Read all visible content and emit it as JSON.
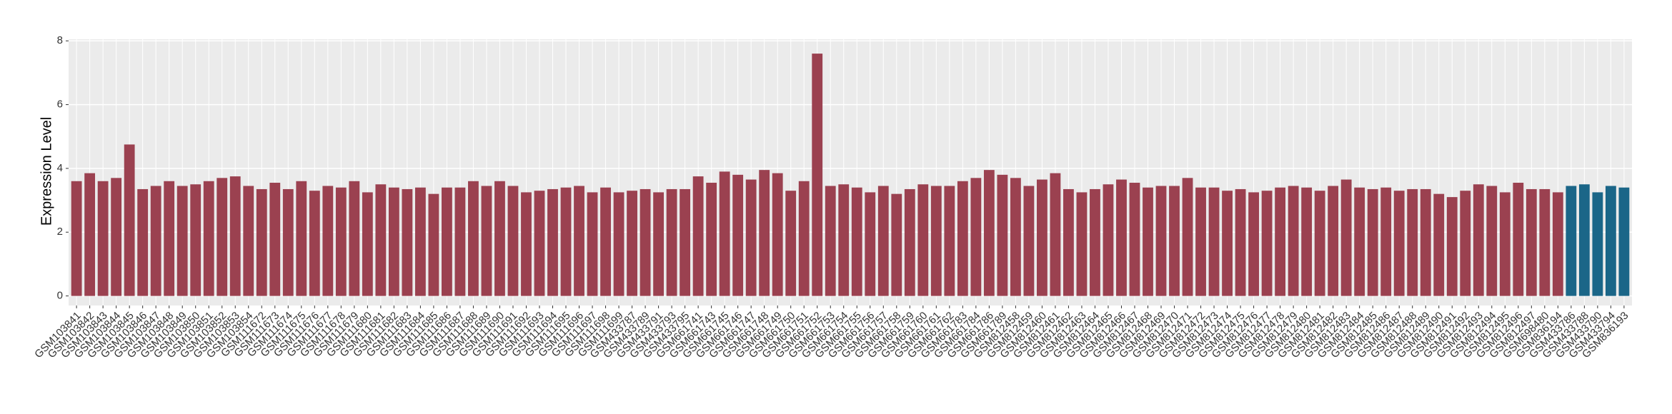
{
  "chart_data": {
    "type": "bar",
    "y_label": "Expression Level",
    "categories": [
      "GSM103841",
      "GSM103842",
      "GSM103843",
      "GSM103844",
      "GSM103845",
      "GSM103846",
      "GSM103847",
      "GSM103848",
      "GSM103849",
      "GSM103850",
      "GSM103851",
      "GSM103852",
      "GSM103853",
      "GSM103854",
      "GSM111672",
      "GSM111673",
      "GSM111674",
      "GSM111675",
      "GSM111676",
      "GSM111677",
      "GSM111678",
      "GSM111679",
      "GSM111680",
      "GSM111681",
      "GSM111682",
      "GSM111683",
      "GSM111684",
      "GSM111685",
      "GSM111686",
      "GSM111687",
      "GSM111688",
      "GSM111689",
      "GSM111690",
      "GSM111691",
      "GSM111692",
      "GSM111693",
      "GSM111694",
      "GSM111695",
      "GSM111696",
      "GSM111697",
      "GSM111698",
      "GSM111699",
      "GSM433787",
      "GSM433789",
      "GSM433791",
      "GSM433793",
      "GSM433795",
      "GSM661741",
      "GSM661743",
      "GSM661745",
      "GSM661746",
      "GSM661747",
      "GSM661748",
      "GSM661749",
      "GSM661750",
      "GSM661751",
      "GSM661752",
      "GSM661753",
      "GSM661754",
      "GSM661755",
      "GSM661756",
      "GSM661757",
      "GSM661758",
      "GSM661759",
      "GSM661760",
      "GSM661761",
      "GSM661762",
      "GSM661783",
      "GSM661784",
      "GSM661786",
      "GSM661789",
      "GSM812458",
      "GSM812459",
      "GSM812460",
      "GSM812461",
      "GSM812462",
      "GSM812463",
      "GSM812464",
      "GSM812465",
      "GSM812466",
      "GSM812467",
      "GSM812468",
      "GSM812469",
      "GSM812470",
      "GSM812471",
      "GSM812472",
      "GSM812473",
      "GSM812474",
      "GSM812475",
      "GSM812476",
      "GSM812477",
      "GSM812478",
      "GSM812479",
      "GSM812480",
      "GSM812481",
      "GSM812482",
      "GSM812483",
      "GSM812484",
      "GSM812485",
      "GSM812486",
      "GSM812487",
      "GSM812488",
      "GSM812489",
      "GSM812490",
      "GSM812491",
      "GSM812492",
      "GSM812493",
      "GSM812494",
      "GSM812495",
      "GSM812496",
      "GSM812497",
      "GSM698480",
      "GSM836194",
      "GSM433786",
      "GSM433788",
      "GSM433790",
      "GSM433794",
      "GSM836193"
    ],
    "values": [
      3.6,
      3.85,
      3.6,
      3.7,
      4.75,
      3.35,
      3.45,
      3.6,
      3.45,
      3.5,
      3.6,
      3.7,
      3.75,
      3.45,
      3.35,
      3.55,
      3.35,
      3.6,
      3.3,
      3.45,
      3.4,
      3.6,
      3.25,
      3.5,
      3.4,
      3.35,
      3.4,
      3.2,
      3.4,
      3.4,
      3.6,
      3.45,
      3.6,
      3.45,
      3.25,
      3.3,
      3.35,
      3.4,
      3.45,
      3.25,
      3.4,
      3.25,
      3.3,
      3.35,
      3.25,
      3.35,
      3.35,
      3.75,
      3.55,
      3.9,
      3.8,
      3.65,
      3.95,
      3.85,
      3.3,
      3.6,
      7.6,
      3.45,
      3.5,
      3.4,
      3.25,
      3.45,
      3.2,
      3.35,
      3.5,
      3.45,
      3.45,
      3.6,
      3.7,
      3.95,
      3.8,
      3.7,
      3.45,
      3.65,
      3.85,
      3.35,
      3.25,
      3.35,
      3.5,
      3.65,
      3.55,
      3.4,
      3.45,
      3.45,
      3.7,
      3.4,
      3.4,
      3.3,
      3.35,
      3.25,
      3.3,
      3.4,
      3.45,
      3.4,
      3.3,
      3.45,
      3.65,
      3.4,
      3.35,
      3.4,
      3.3,
      3.35,
      3.35,
      3.2,
      3.1,
      3.3,
      3.5,
      3.45,
      3.25,
      3.55,
      3.35,
      3.35,
      3.25,
      3.45,
      3.5,
      3.25,
      3.45,
      3.4
    ],
    "colors": [
      "#9b4150",
      "#9b4150",
      "#9b4150",
      "#9b4150",
      "#9b4150",
      "#9b4150",
      "#9b4150",
      "#9b4150",
      "#9b4150",
      "#9b4150",
      "#9b4150",
      "#9b4150",
      "#9b4150",
      "#9b4150",
      "#9b4150",
      "#9b4150",
      "#9b4150",
      "#9b4150",
      "#9b4150",
      "#9b4150",
      "#9b4150",
      "#9b4150",
      "#9b4150",
      "#9b4150",
      "#9b4150",
      "#9b4150",
      "#9b4150",
      "#9b4150",
      "#9b4150",
      "#9b4150",
      "#9b4150",
      "#9b4150",
      "#9b4150",
      "#9b4150",
      "#9b4150",
      "#9b4150",
      "#9b4150",
      "#9b4150",
      "#9b4150",
      "#9b4150",
      "#9b4150",
      "#9b4150",
      "#9b4150",
      "#9b4150",
      "#9b4150",
      "#9b4150",
      "#9b4150",
      "#9b4150",
      "#9b4150",
      "#9b4150",
      "#9b4150",
      "#9b4150",
      "#9b4150",
      "#9b4150",
      "#9b4150",
      "#9b4150",
      "#9b4150",
      "#9b4150",
      "#9b4150",
      "#9b4150",
      "#9b4150",
      "#9b4150",
      "#9b4150",
      "#9b4150",
      "#9b4150",
      "#9b4150",
      "#9b4150",
      "#9b4150",
      "#9b4150",
      "#9b4150",
      "#9b4150",
      "#9b4150",
      "#9b4150",
      "#9b4150",
      "#9b4150",
      "#9b4150",
      "#9b4150",
      "#9b4150",
      "#9b4150",
      "#9b4150",
      "#9b4150",
      "#9b4150",
      "#9b4150",
      "#9b4150",
      "#9b4150",
      "#9b4150",
      "#9b4150",
      "#9b4150",
      "#9b4150",
      "#9b4150",
      "#9b4150",
      "#9b4150",
      "#9b4150",
      "#9b4150",
      "#9b4150",
      "#9b4150",
      "#9b4150",
      "#9b4150",
      "#9b4150",
      "#9b4150",
      "#9b4150",
      "#9b4150",
      "#9b4150",
      "#9b4150",
      "#9b4150",
      "#9b4150",
      "#9b4150",
      "#9b4150",
      "#9b4150",
      "#9b4150",
      "#9b4150",
      "#9b4150",
      "#9b4150",
      "#1b6688",
      "#1b6688",
      "#1b6688",
      "#1b6688",
      "#1b6688"
    ],
    "ylim": [
      -0.3,
      8.05
    ],
    "yticks": [
      0,
      2,
      4,
      6,
      8
    ],
    "grid": true
  }
}
